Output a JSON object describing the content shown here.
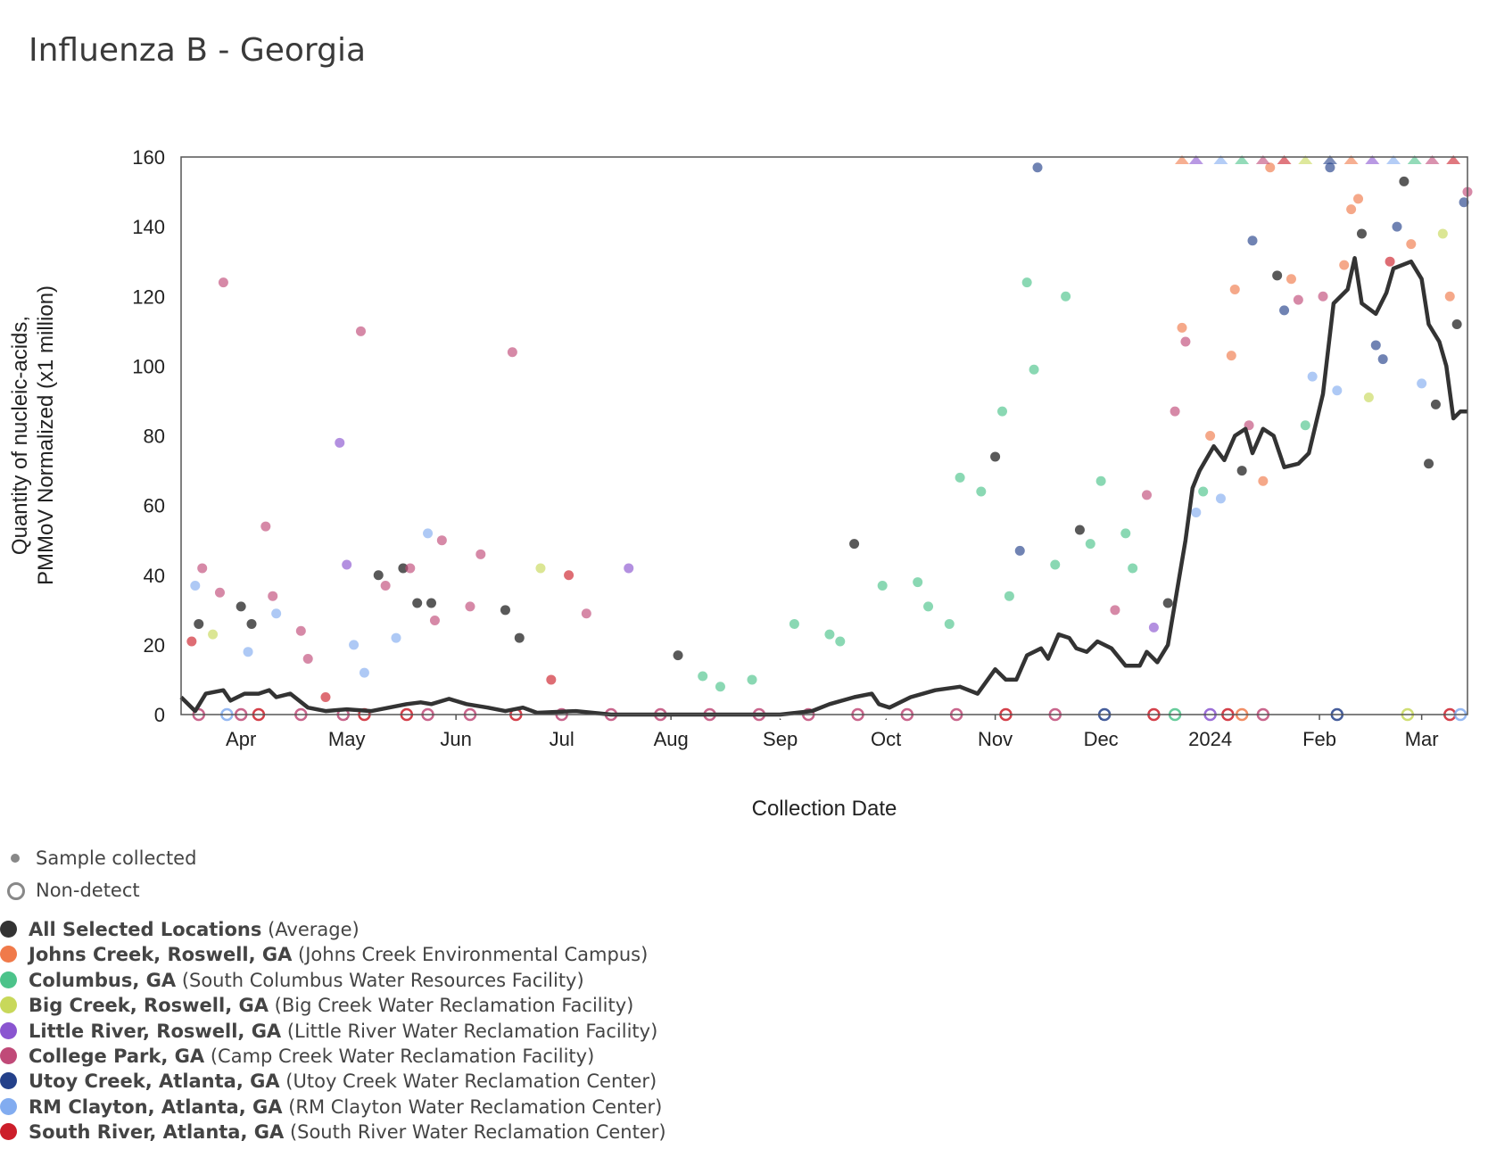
{
  "title": "Influenza B - Georgia",
  "chart_data": {
    "type": "scatter",
    "title": "Influenza B - Georgia",
    "xlabel": "Collection Date",
    "ylabel_lines": [
      "Quantity of nucleic-acids,",
      "PMMoV Normalized (x1 million)"
    ],
    "xlim": [
      "2023-03-15",
      "2024-03-14"
    ],
    "ylim": [
      0,
      160
    ],
    "yticks": [
      0,
      20,
      40,
      60,
      80,
      100,
      120,
      140,
      160
    ],
    "xticks": [
      {
        "date": "2023-04-01",
        "label": "Apr"
      },
      {
        "date": "2023-05-01",
        "label": "May"
      },
      {
        "date": "2023-06-01",
        "label": "Jun"
      },
      {
        "date": "2023-07-01",
        "label": "Jul"
      },
      {
        "date": "2023-08-01",
        "label": "Aug"
      },
      {
        "date": "2023-09-01",
        "label": "Sep"
      },
      {
        "date": "2023-10-01",
        "label": "Oct"
      },
      {
        "date": "2023-11-01",
        "label": "Nov"
      },
      {
        "date": "2023-12-01",
        "label": "Dec"
      },
      {
        "date": "2024-01-01",
        "label": "2024"
      },
      {
        "date": "2024-02-01",
        "label": "Feb"
      },
      {
        "date": "2024-03-01",
        "label": "Mar"
      }
    ],
    "grid": false,
    "series": [
      {
        "name": "All Selected Locations",
        "detail": "(Average)",
        "color": "#333333",
        "kind": "line",
        "points": [
          [
            "2023-03-15",
            5
          ],
          [
            "2023-03-19",
            1
          ],
          [
            "2023-03-22",
            6
          ],
          [
            "2023-03-27",
            7
          ],
          [
            "2023-03-29",
            4
          ],
          [
            "2023-04-02",
            6
          ],
          [
            "2023-04-06",
            6
          ],
          [
            "2023-04-09",
            7
          ],
          [
            "2023-04-11",
            5
          ],
          [
            "2023-04-15",
            6
          ],
          [
            "2023-04-20",
            2
          ],
          [
            "2023-04-25",
            1
          ],
          [
            "2023-05-01",
            1.5
          ],
          [
            "2023-05-08",
            1
          ],
          [
            "2023-05-13",
            2
          ],
          [
            "2023-05-18",
            3
          ],
          [
            "2023-05-22",
            3.5
          ],
          [
            "2023-05-25",
            3
          ],
          [
            "2023-05-30",
            4.5
          ],
          [
            "2023-06-04",
            3
          ],
          [
            "2023-06-10",
            2
          ],
          [
            "2023-06-15",
            1
          ],
          [
            "2023-06-20",
            2
          ],
          [
            "2023-06-24",
            0.5
          ],
          [
            "2023-07-05",
            1
          ],
          [
            "2023-07-15",
            0
          ],
          [
            "2023-08-01",
            0
          ],
          [
            "2023-08-20",
            0
          ],
          [
            "2023-09-01",
            0
          ],
          [
            "2023-09-10",
            1
          ],
          [
            "2023-09-15",
            3
          ],
          [
            "2023-09-22",
            5
          ],
          [
            "2023-09-27",
            6
          ],
          [
            "2023-09-29",
            3
          ],
          [
            "2023-10-02",
            2
          ],
          [
            "2023-10-08",
            5
          ],
          [
            "2023-10-15",
            7
          ],
          [
            "2023-10-22",
            8
          ],
          [
            "2023-10-27",
            6
          ],
          [
            "2023-11-01",
            13
          ],
          [
            "2023-11-04",
            10
          ],
          [
            "2023-11-07",
            10
          ],
          [
            "2023-11-10",
            17
          ],
          [
            "2023-11-14",
            19
          ],
          [
            "2023-11-16",
            16
          ],
          [
            "2023-11-19",
            23
          ],
          [
            "2023-11-22",
            22
          ],
          [
            "2023-11-24",
            19
          ],
          [
            "2023-11-27",
            18
          ],
          [
            "2023-11-30",
            21
          ],
          [
            "2023-12-04",
            19
          ],
          [
            "2023-12-08",
            14
          ],
          [
            "2023-12-12",
            14
          ],
          [
            "2023-12-14",
            18
          ],
          [
            "2023-12-17",
            15
          ],
          [
            "2023-12-20",
            20
          ],
          [
            "2023-12-23",
            38
          ],
          [
            "2023-12-25",
            50
          ],
          [
            "2023-12-27",
            65
          ],
          [
            "2023-12-29",
            70
          ],
          [
            "2024-01-02",
            77
          ],
          [
            "2024-01-05",
            73
          ],
          [
            "2024-01-08",
            80
          ],
          [
            "2024-01-11",
            82
          ],
          [
            "2024-01-13",
            75
          ],
          [
            "2024-01-16",
            82
          ],
          [
            "2024-01-19",
            80
          ],
          [
            "2024-01-22",
            71
          ],
          [
            "2024-01-26",
            72
          ],
          [
            "2024-01-29",
            75
          ],
          [
            "2024-02-02",
            92
          ],
          [
            "2024-02-05",
            118
          ],
          [
            "2024-02-09",
            122
          ],
          [
            "2024-02-11",
            131
          ],
          [
            "2024-02-13",
            118
          ],
          [
            "2024-02-17",
            115
          ],
          [
            "2024-02-20",
            121
          ],
          [
            "2024-02-22",
            128
          ],
          [
            "2024-02-27",
            130
          ],
          [
            "2024-03-01",
            125
          ],
          [
            "2024-03-03",
            112
          ],
          [
            "2024-03-06",
            107
          ],
          [
            "2024-03-08",
            100
          ],
          [
            "2024-03-10",
            85
          ],
          [
            "2024-03-12",
            87
          ],
          [
            "2024-03-14",
            87
          ]
        ]
      },
      {
        "name": "Johns Creek, Roswell, GA",
        "detail": "(Johns Creek Environmental Campus)",
        "color": "#f07a4a"
      },
      {
        "name": "Columbus, GA",
        "detail": "(South Columbus Water Resources Facility)",
        "color": "#4cc38a"
      },
      {
        "name": "Big Creek, Roswell, GA",
        "detail": "(Big Creek Water Reclamation Facility)",
        "color": "#c8d85a"
      },
      {
        "name": "Little River, Roswell, GA",
        "detail": "(Little River Water Reclamation Facility)",
        "color": "#8a55d0"
      },
      {
        "name": "College Park, GA",
        "detail": "(Camp Creek Water Reclamation Facility)",
        "color": "#c04a78"
      },
      {
        "name": "Utoy Creek, Atlanta, GA",
        "detail": "(Utoy Creek Water Reclamation Center)",
        "color": "#24418a"
      },
      {
        "name": "RM Clayton, Atlanta, GA",
        "detail": "(RM Clayton Water Reclamation Center)",
        "color": "#82acf0"
      },
      {
        "name": "South River, Atlanta, GA",
        "detail": "(South River Water Reclamation Center)",
        "color": "#cc1e2a"
      }
    ],
    "sample_points": [
      [
        "2023-03-20",
        26,
        8
      ],
      [
        "2023-03-21",
        42,
        4
      ],
      [
        "2023-03-19",
        37,
        6
      ],
      [
        "2023-03-18",
        21,
        7
      ],
      [
        "2023-03-24",
        23,
        2
      ],
      [
        "2023-03-26",
        35,
        4
      ],
      [
        "2023-03-27",
        124,
        4
      ],
      [
        "2023-04-01",
        31,
        8
      ],
      [
        "2023-04-04",
        26,
        8
      ],
      [
        "2023-04-03",
        18,
        6
      ],
      [
        "2023-04-08",
        54,
        4
      ],
      [
        "2023-04-10",
        34,
        4
      ],
      [
        "2023-04-11",
        29,
        6
      ],
      [
        "2023-04-18",
        24,
        4
      ],
      [
        "2023-04-20",
        16,
        4
      ],
      [
        "2023-04-25",
        5,
        7
      ],
      [
        "2023-04-29",
        78,
        3
      ],
      [
        "2023-05-01",
        43,
        3
      ],
      [
        "2023-05-03",
        20,
        6
      ],
      [
        "2023-05-05",
        110,
        4
      ],
      [
        "2023-05-06",
        12,
        6
      ],
      [
        "2023-05-10",
        40,
        8
      ],
      [
        "2023-05-12",
        37,
        4
      ],
      [
        "2023-05-15",
        22,
        6
      ],
      [
        "2023-05-17",
        42,
        8
      ],
      [
        "2023-05-19",
        42,
        4
      ],
      [
        "2023-05-21",
        32,
        8
      ],
      [
        "2023-05-24",
        52,
        6
      ],
      [
        "2023-05-25",
        32,
        8
      ],
      [
        "2023-05-26",
        27,
        4
      ],
      [
        "2023-05-28",
        50,
        4
      ],
      [
        "2023-06-05",
        31,
        4
      ],
      [
        "2023-06-08",
        46,
        4
      ],
      [
        "2023-06-15",
        30,
        8
      ],
      [
        "2023-06-19",
        22,
        8
      ],
      [
        "2023-06-17",
        104,
        4
      ],
      [
        "2023-06-25",
        42,
        2
      ],
      [
        "2023-06-28",
        10,
        7
      ],
      [
        "2023-07-03",
        40,
        7
      ],
      [
        "2023-07-08",
        29,
        4
      ],
      [
        "2023-07-20",
        42,
        3
      ],
      [
        "2023-08-03",
        17,
        8
      ],
      [
        "2023-08-10",
        11,
        1
      ],
      [
        "2023-08-15",
        8,
        1
      ],
      [
        "2023-08-24",
        10,
        1
      ],
      [
        "2023-09-05",
        26,
        1
      ],
      [
        "2023-09-15",
        23,
        1
      ],
      [
        "2023-09-18",
        21,
        1
      ],
      [
        "2023-09-22",
        49,
        8
      ],
      [
        "2023-09-30",
        37,
        1
      ],
      [
        "2023-10-10",
        38,
        1
      ],
      [
        "2023-10-13",
        31,
        1
      ],
      [
        "2023-10-19",
        26,
        1
      ],
      [
        "2023-10-22",
        68,
        1
      ],
      [
        "2023-10-28",
        64,
        1
      ],
      [
        "2023-11-01",
        74,
        8
      ],
      [
        "2023-11-03",
        87,
        1
      ],
      [
        "2023-11-05",
        34,
        1
      ],
      [
        "2023-11-08",
        47,
        5
      ],
      [
        "2023-11-13",
        157,
        5
      ],
      [
        "2023-11-10",
        124,
        1
      ],
      [
        "2023-11-12",
        99,
        1
      ],
      [
        "2023-11-18",
        43,
        1
      ],
      [
        "2023-11-21",
        120,
        1
      ],
      [
        "2023-11-25",
        53,
        8
      ],
      [
        "2023-11-28",
        49,
        1
      ],
      [
        "2023-12-01",
        67,
        1
      ],
      [
        "2023-12-05",
        30,
        4
      ],
      [
        "2023-12-08",
        52,
        1
      ],
      [
        "2023-12-10",
        42,
        1
      ],
      [
        "2023-12-14",
        63,
        4
      ],
      [
        "2023-12-16",
        25,
        3
      ],
      [
        "2023-12-20",
        32,
        8
      ],
      [
        "2023-12-22",
        87,
        4
      ],
      [
        "2023-12-24",
        111,
        0
      ],
      [
        "2023-12-25",
        107,
        4
      ],
      [
        "2023-12-28",
        58,
        6
      ],
      [
        "2023-12-30",
        64,
        1
      ],
      [
        "2024-01-01",
        80,
        0
      ],
      [
        "2024-01-04",
        62,
        6
      ],
      [
        "2024-01-07",
        103,
        0
      ],
      [
        "2024-01-08",
        122,
        0
      ],
      [
        "2024-01-10",
        70,
        8
      ],
      [
        "2024-01-12",
        83,
        4
      ],
      [
        "2024-01-13",
        136,
        5
      ],
      [
        "2024-01-16",
        67,
        0
      ],
      [
        "2024-01-18",
        157,
        0
      ],
      [
        "2024-01-20",
        126,
        8
      ],
      [
        "2024-01-22",
        116,
        5
      ],
      [
        "2024-01-24",
        125,
        0
      ],
      [
        "2024-01-26",
        119,
        4
      ],
      [
        "2024-01-28",
        83,
        1
      ],
      [
        "2024-01-30",
        97,
        6
      ],
      [
        "2024-02-02",
        120,
        4
      ],
      [
        "2024-02-04",
        157,
        5
      ],
      [
        "2024-02-06",
        93,
        6
      ],
      [
        "2024-02-08",
        129,
        0
      ],
      [
        "2024-02-10",
        145,
        0
      ],
      [
        "2024-02-12",
        148,
        0
      ],
      [
        "2024-02-13",
        138,
        8
      ],
      [
        "2024-02-15",
        91,
        2
      ],
      [
        "2024-02-17",
        106,
        5
      ],
      [
        "2024-02-19",
        102,
        5
      ],
      [
        "2024-02-21",
        130,
        7
      ],
      [
        "2024-02-23",
        140,
        5
      ],
      [
        "2024-02-25",
        153,
        8
      ],
      [
        "2024-02-27",
        135,
        0
      ],
      [
        "2024-03-01",
        95,
        6
      ],
      [
        "2024-03-03",
        72,
        8
      ],
      [
        "2024-03-05",
        89,
        8
      ],
      [
        "2024-03-07",
        138,
        2
      ],
      [
        "2024-03-09",
        120,
        0
      ],
      [
        "2024-03-11",
        112,
        8
      ],
      [
        "2024-03-13",
        147,
        5
      ],
      [
        "2024-03-14",
        150,
        4
      ]
    ],
    "nondetect_points": [
      [
        "2023-03-16",
        8
      ],
      [
        "2023-03-20",
        4
      ],
      [
        "2023-03-24",
        8
      ],
      [
        "2023-03-28",
        6
      ],
      [
        "2023-04-01",
        4
      ],
      [
        "2023-04-06",
        7
      ],
      [
        "2023-04-12",
        8
      ],
      [
        "2023-04-18",
        4
      ],
      [
        "2023-04-24",
        8
      ],
      [
        "2023-04-30",
        4
      ],
      [
        "2023-05-06",
        7
      ],
      [
        "2023-05-12",
        8
      ],
      [
        "2023-05-18",
        7
      ],
      [
        "2023-05-24",
        4
      ],
      [
        "2023-05-30",
        8
      ],
      [
        "2023-06-05",
        4
      ],
      [
        "2023-06-12",
        8
      ],
      [
        "2023-06-18",
        7
      ],
      [
        "2023-06-25",
        8
      ],
      [
        "2023-07-01",
        4
      ],
      [
        "2023-07-08",
        8
      ],
      [
        "2023-07-15",
        4
      ],
      [
        "2023-07-22",
        8
      ],
      [
        "2023-07-29",
        4
      ],
      [
        "2023-08-05",
        8
      ],
      [
        "2023-08-12",
        4
      ],
      [
        "2023-08-19",
        8
      ],
      [
        "2023-08-26",
        4
      ],
      [
        "2023-09-02",
        8
      ],
      [
        "2023-09-09",
        4
      ],
      [
        "2023-09-16",
        8
      ],
      [
        "2023-09-23",
        4
      ],
      [
        "2023-09-30",
        8
      ],
      [
        "2023-10-07",
        4
      ],
      [
        "2023-10-14",
        8
      ],
      [
        "2023-10-21",
        4
      ],
      [
        "2023-10-28",
        8
      ],
      [
        "2023-11-04",
        7
      ],
      [
        "2023-11-11",
        8
      ],
      [
        "2023-11-18",
        4
      ],
      [
        "2023-11-25",
        8
      ],
      [
        "2023-12-02",
        5
      ],
      [
        "2023-12-09",
        8
      ],
      [
        "2023-12-16",
        7
      ],
      [
        "2023-12-22",
        1
      ],
      [
        "2024-01-01",
        3
      ],
      [
        "2024-01-06",
        7
      ],
      [
        "2024-01-10",
        0
      ],
      [
        "2024-01-16",
        4
      ],
      [
        "2024-01-20",
        8
      ],
      [
        "2024-02-06",
        5
      ],
      [
        "2024-02-26",
        2
      ],
      [
        "2024-03-09",
        7
      ],
      [
        "2024-03-12",
        6
      ]
    ],
    "capped_points": [
      "2023-12-24",
      "2023-12-28",
      "2024-01-04",
      "2024-01-10",
      "2024-01-16",
      "2024-01-22",
      "2024-01-28",
      "2024-02-04",
      "2024-02-10",
      "2024-02-16",
      "2024-02-22",
      "2024-02-28",
      "2024-03-04",
      "2024-03-10"
    ]
  },
  "legend": {
    "sample_label": "Sample collected",
    "nondetect_label": "Non-detect"
  }
}
